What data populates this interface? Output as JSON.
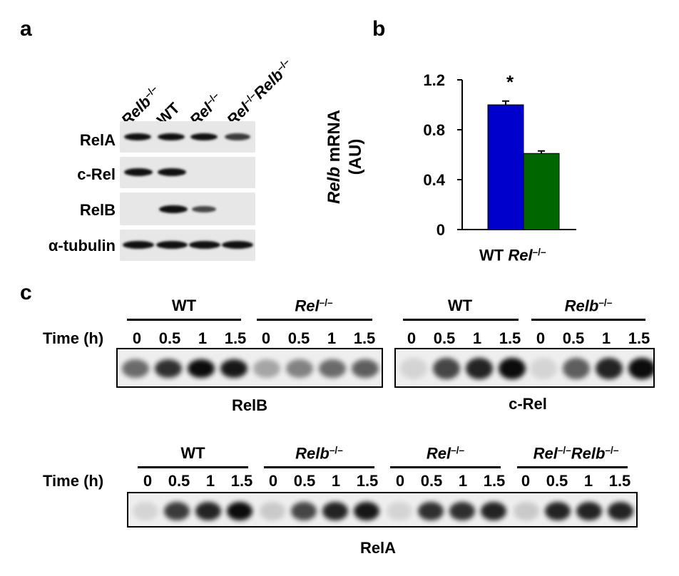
{
  "panel_a": {
    "letter": "a",
    "columns": [
      {
        "name": "Relb",
        "sup": "–/–",
        "rest": "",
        "rest_sup": ""
      },
      {
        "name": "WT",
        "sup": "",
        "rest": "",
        "rest_sup": ""
      },
      {
        "name": "Rel",
        "sup": "–/–",
        "rest": "",
        "rest_sup": ""
      },
      {
        "name": "Rel",
        "sup": "–/–",
        "rest": "Relb",
        "rest_sup": "–/–"
      }
    ],
    "rows": [
      "RelA",
      "c-Rel",
      "RelB",
      "α-tubulin"
    ],
    "presence": {
      "RelA": [
        1,
        1,
        1,
        1
      ],
      "c-Rel": [
        1,
        1,
        0,
        0
      ],
      "RelB": [
        0,
        1,
        1,
        0
      ],
      "α-tubulin": [
        1,
        1,
        1,
        1
      ]
    }
  },
  "panel_b": {
    "letter": "b",
    "ylabel_gene": "Relb",
    "ylabel_unit": " mRNA",
    "ylabel_line2": "(AU)",
    "yticks": [
      "1.2",
      "0.8",
      "0.4",
      "0"
    ],
    "significance": "*",
    "xlabel_1": "WT",
    "xlabel_2": "Rel",
    "xlabel_2_sup": "–/–"
  },
  "chart_data": {
    "type": "bar",
    "categories": [
      "WT",
      "Rel–/–"
    ],
    "values": [
      1.0,
      0.61
    ],
    "errors": [
      0.03,
      0.02
    ],
    "colors": [
      "#0000cc",
      "#006600"
    ],
    "ylabel": "Relb mRNA (AU)",
    "ylim": [
      0,
      1.2
    ],
    "yticks": [
      0,
      0.4,
      0.8,
      1.2
    ],
    "annotation": "*"
  },
  "panel_c": {
    "letter": "c",
    "time_label": "Time (h)",
    "timepoints": [
      "0",
      "0.5",
      "1",
      "1.5"
    ],
    "top_left": {
      "groups": [
        {
          "name": "WT",
          "sup": ""
        },
        {
          "name": "Rel",
          "sup": "–/–"
        }
      ],
      "caption": "RelB",
      "intensity": [
        [
          0.55,
          0.8,
          0.95,
          0.9
        ],
        [
          0.3,
          0.45,
          0.55,
          0.6
        ]
      ]
    },
    "top_right": {
      "groups": [
        {
          "name": "WT",
          "sup": ""
        },
        {
          "name": "Relb",
          "sup": "–/–"
        }
      ],
      "caption": "c-Rel",
      "intensity": [
        [
          0.1,
          0.7,
          0.85,
          0.95
        ],
        [
          0.1,
          0.6,
          0.85,
          0.95
        ]
      ]
    },
    "bottom": {
      "groups": [
        {
          "name": "WT",
          "sup": "",
          "rest": "",
          "rest_sup": ""
        },
        {
          "name": "Relb",
          "sup": "–/–",
          "rest": "",
          "rest_sup": ""
        },
        {
          "name": "Rel",
          "sup": "–/–",
          "rest": "",
          "rest_sup": ""
        },
        {
          "name": "Rel",
          "sup": "–/–",
          "rest": "Relb",
          "rest_sup": "–/–"
        }
      ],
      "caption": "RelA",
      "intensity": [
        [
          0.1,
          0.75,
          0.85,
          0.95
        ],
        [
          0.15,
          0.7,
          0.85,
          0.9
        ],
        [
          0.1,
          0.8,
          0.8,
          0.85
        ],
        [
          0.15,
          0.85,
          0.85,
          0.85
        ]
      ]
    }
  }
}
